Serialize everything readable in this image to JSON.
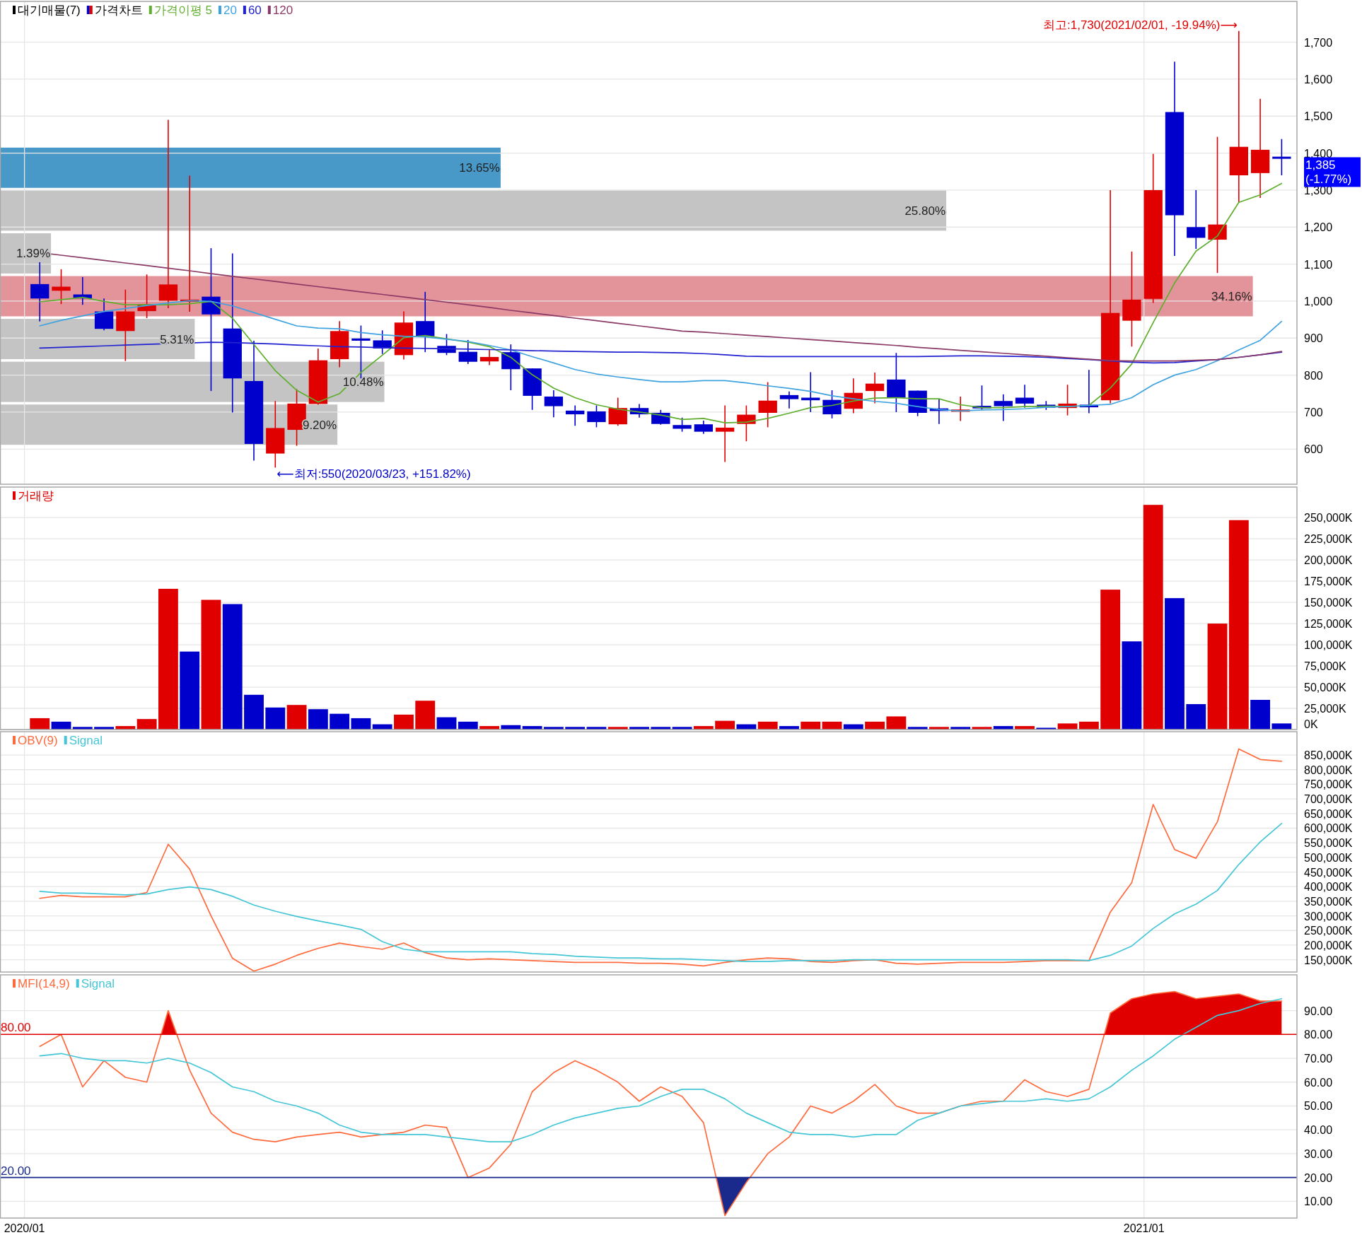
{
  "chart_data": [
    {
      "type": "bar",
      "orientation": "horizontal",
      "legend": "top left",
      "tick_labels": false,
      "categories": [
        null,
        null,
        null,
        null,
        null,
        null,
        null
      ],
      "series": [
        {
          "name": "대기매물(7)",
          "values": [
            13.65,
            25.8,
            1.39,
            34.16,
            5.31,
            10.48,
            9.2
          ],
          "colors": [
            "#4898c8",
            "#c4c4c4",
            "#c4c4c4",
            "#e3939a",
            "#c4c4c4",
            "#c4c4c4",
            "#c4c4c4"
          ],
          "value_labels": [
            "13.65%",
            "25.80%",
            "1.39%",
            "34.16%",
            "5.31%",
            "10.48%",
            "9.20%"
          ]
        }
      ]
    },
    {
      "type": "candlestick",
      "legend": "top left",
      "grid": true,
      "tick_labels": "y",
      "x": [
        "2020-01-06",
        "2020-01-13",
        "2020-01-20",
        "2020-01-27",
        "2020-02-03",
        "2020-02-10",
        "2020-02-17",
        "2020-02-24",
        "2020-03-02",
        "2020-03-09",
        "2020-03-16",
        "2020-03-23",
        "2020-03-30",
        "2020-04-06",
        "2020-04-13",
        "2020-04-20",
        "2020-04-27",
        "2020-05-04",
        "2020-05-11",
        "2020-05-18",
        "2020-05-25",
        "2020-06-01",
        "2020-06-08",
        "2020-06-15",
        "2020-06-22",
        "2020-06-29",
        "2020-07-06",
        "2020-07-13",
        "2020-07-20",
        "2020-07-27",
        "2020-08-03",
        "2020-08-10",
        "2020-08-17",
        "2020-08-24",
        "2020-08-31",
        "2020-09-07",
        "2020-09-14",
        "2020-09-21",
        "2020-09-28",
        "2020-10-05",
        "2020-10-12",
        "2020-10-19",
        "2020-10-26",
        "2020-11-02",
        "2020-11-09",
        "2020-11-16",
        "2020-11-23",
        "2020-11-30",
        "2020-12-07",
        "2020-12-14",
        "2020-12-21",
        "2020-12-28",
        "2021-01-04",
        "2021-01-11",
        "2021-01-18",
        "2021-01-25",
        "2021-02-01",
        "2021-02-08",
        "2021-02-15"
      ],
      "xlim": [
        "2019-12-24",
        "2021-02-20"
      ],
      "xticks": [
        {
          "value": "2020-01-01",
          "label": null
        },
        {
          "value": "2021-01-01",
          "label": null
        }
      ],
      "ylim": [
        505,
        1810
      ],
      "yticks": [
        600,
        700,
        800,
        900,
        {
          "value": 1000,
          "label": "1,000"
        },
        {
          "value": 1100,
          "label": "1,100"
        },
        {
          "value": 1200,
          "label": "1,200"
        },
        {
          "value": 1300,
          "label": "1,300"
        },
        {
          "value": 1400,
          "label": "1,400"
        },
        {
          "value": 1500,
          "label": "1,500"
        },
        {
          "value": 1600,
          "label": "1,600"
        },
        {
          "value": 1700,
          "label": "1,700"
        }
      ],
      "annotations": [
        {
          "text": "최고:1,730(2021/02/01, -19.94%)⟶",
          "x": "2021-02-01",
          "y": 1730
        },
        {
          "text": "⟵최저:550(2020/03/23, +151.82%)",
          "x": "2020-03-23",
          "y": 550
        },
        "1,385\n(-1.77%)"
      ],
      "series": [
        {
          "name": "가격차트",
          "ohlc": [
            [
              1046,
              1105,
              945,
              1007
            ],
            [
              1028,
              1086,
              992,
              1039
            ],
            [
              1018,
              1065,
              990,
              1007
            ],
            [
              972,
              1007,
              921,
              925
            ],
            [
              919,
              1031,
              838,
              972
            ],
            [
              973,
              1072,
              954,
              992
            ],
            [
              1001,
              1490,
              981,
              1045
            ],
            [
              998,
              1339,
              971,
              1004
            ],
            [
              1012,
              1143,
              757,
              964
            ],
            [
              926,
              1129,
              699,
              791
            ],
            [
              784,
              893,
              569,
              614
            ],
            [
              588,
              730,
              550,
              657
            ],
            [
              652,
              762,
              609,
              723
            ],
            [
              722,
              872,
              720,
              840
            ],
            [
              843,
              946,
              821,
              919
            ],
            [
              899,
              934,
              791,
              893
            ],
            [
              894,
              921,
              857,
              872
            ],
            [
              854,
              972,
              842,
              942
            ],
            [
              946,
              1025,
              862,
              905
            ],
            [
              879,
              911,
              854,
              860
            ],
            [
              863,
              895,
              830,
              836
            ],
            [
              837,
              869,
              827,
              849
            ],
            [
              862,
              883,
              759,
              816
            ],
            [
              818,
              818,
              706,
              744
            ],
            [
              742,
              759,
              686,
              716
            ],
            [
              704,
              718,
              663,
              694
            ],
            [
              702,
              718,
              659,
              673
            ],
            [
              667,
              739,
              663,
              711
            ],
            [
              711,
              722,
              685,
              694
            ],
            [
              698,
              706,
              666,
              668
            ],
            [
              665,
              685,
              647,
              655
            ],
            [
              667,
              677,
              641,
              647
            ],
            [
              647,
              718,
              565,
              658
            ],
            [
              668,
              718,
              621,
              693
            ],
            [
              698,
              781,
              659,
              731
            ],
            [
              746,
              756,
              710,
              735
            ],
            [
              739,
              808,
              700,
              732
            ],
            [
              733,
              759,
              683,
              694
            ],
            [
              709,
              791,
              697,
              752
            ],
            [
              757,
              807,
              724,
              777
            ],
            [
              788,
              860,
              700,
              739
            ],
            [
              758,
              758,
              689,
              698
            ],
            [
              710,
              736,
              668,
              703
            ],
            [
              702,
              742,
              676,
              706
            ],
            [
              717,
              772,
              706,
              710
            ],
            [
              730,
              748,
              676,
              716
            ],
            [
              739,
              774,
              712,
              723
            ],
            [
              720,
              730,
              706,
              712
            ],
            [
              711,
              774,
              691,
              723
            ],
            [
              720,
              814,
              697,
              713
            ],
            [
              732,
              1300,
              724,
              968
            ],
            [
              947,
              1134,
              877,
              1004
            ],
            [
              1006,
              1398,
              995,
              1300
            ],
            [
              1511,
              1647,
              1122,
              1232
            ],
            [
              1200,
              1300,
              1141,
              1171
            ],
            [
              1166,
              1444,
              1076,
              1207
            ],
            [
              1340,
              1730,
              1266,
              1417
            ],
            [
              1346,
              1547,
              1279,
              1409
            ],
            [
              1390,
              1438,
              1340,
              1385
            ]
          ],
          "colors": [
            "#0000cc",
            "#e00000",
            "#0000cc",
            "#0000cc",
            "#e00000",
            "#e00000",
            "#e00000",
            "#e00000",
            "#0000cc",
            "#0000cc",
            "#0000cc",
            "#e00000",
            "#e00000",
            "#e00000",
            "#e00000",
            "#0000cc",
            "#0000cc",
            "#e00000",
            "#0000cc",
            "#0000cc",
            "#0000cc",
            "#e00000",
            "#0000cc",
            "#0000cc",
            "#0000cc",
            "#0000cc",
            "#0000cc",
            "#e00000",
            "#0000cc",
            "#0000cc",
            "#0000cc",
            "#0000cc",
            "#e00000",
            "#e00000",
            "#e00000",
            "#0000cc",
            "#0000cc",
            "#0000cc",
            "#e00000",
            "#e00000",
            "#0000cc",
            "#0000cc",
            "#0000cc",
            "#e00000",
            "#0000cc",
            "#0000cc",
            "#0000cc",
            "#0000cc",
            "#e00000",
            "#0000cc",
            "#e00000",
            "#e00000",
            "#e00000",
            "#0000cc",
            "#0000cc",
            "#e00000",
            "#e00000",
            "#e00000",
            "#0000cc"
          ]
        },
        {
          "name": "가격이평 5",
          "type": "line",
          "color": "#5fae2e",
          "values": [
            998,
            1004,
            1010,
            999,
            990,
            990,
            990,
            993,
            999,
            954,
            883,
            812,
            759,
            727,
            750,
            807,
            854,
            901,
            907,
            898,
            889,
            877,
            848,
            801,
            765,
            739,
            720,
            708,
            700,
            692,
            680,
            683,
            671,
            673,
            683,
            697,
            712,
            718,
            730,
            738,
            739,
            736,
            736,
            720,
            712,
            712,
            715,
            716,
            715,
            718,
            765,
            830,
            942,
            1049,
            1135,
            1176,
            1267,
            1287,
            1318
          ]
        },
        {
          "name": "20",
          "type": "line",
          "color": "#3fa3e0",
          "values": [
            933,
            948,
            960,
            972,
            980,
            988,
            995,
            1001,
            999,
            987,
            969,
            951,
            933,
            927,
            925,
            915,
            909,
            905,
            903,
            897,
            891,
            880,
            868,
            850,
            833,
            815,
            803,
            795,
            788,
            782,
            782,
            785,
            785,
            779,
            771,
            764,
            756,
            744,
            736,
            729,
            724,
            715,
            707,
            703,
            706,
            707,
            709,
            713,
            715,
            718,
            721,
            739,
            774,
            800,
            815,
            839,
            868,
            894,
            945
          ]
        },
        {
          "name": "60",
          "type": "line",
          "color": "#2222d0",
          "values": [
            873,
            875,
            877,
            879,
            881,
            883,
            885,
            887,
            889,
            888,
            886,
            884,
            881,
            879,
            877,
            876,
            874,
            873,
            872,
            871,
            870,
            869,
            868,
            866,
            865,
            864,
            863,
            862,
            862,
            861,
            860,
            858,
            855,
            851,
            850,
            850,
            850,
            850,
            850,
            850,
            850,
            850,
            851,
            852,
            852,
            851,
            850,
            848,
            845,
            842,
            838,
            835,
            833,
            834,
            838,
            842,
            848,
            855,
            862
          ]
        },
        {
          "name": "120",
          "type": "line",
          "color": "#8b3a66",
          "values": [
            1131,
            1124,
            1117,
            1110,
            1103,
            1096,
            1089,
            1082,
            1074,
            1067,
            1060,
            1053,
            1046,
            1039,
            1032,
            1025,
            1018,
            1011,
            1004,
            997,
            990,
            983,
            975,
            968,
            961,
            954,
            947,
            940,
            933,
            926,
            919,
            916,
            912,
            908,
            904,
            900,
            896,
            892,
            888,
            884,
            880,
            875,
            871,
            867,
            863,
            859,
            855,
            851,
            847,
            843,
            839,
            838,
            838,
            838,
            840,
            842,
            848,
            855,
            864
          ]
        }
      ]
    },
    {
      "type": "bar",
      "legend": "top left",
      "grid": true,
      "tick_labels": "y",
      "x": [
        "2020-01-06",
        "2020-01-13",
        "2020-01-20",
        "2020-01-27",
        "2020-02-03",
        "2020-02-10",
        "2020-02-17",
        "2020-02-24",
        "2020-03-02",
        "2020-03-09",
        "2020-03-16",
        "2020-03-23",
        "2020-03-30",
        "2020-04-06",
        "2020-04-13",
        "2020-04-20",
        "2020-04-27",
        "2020-05-04",
        "2020-05-11",
        "2020-05-18",
        "2020-05-25",
        "2020-06-01",
        "2020-06-08",
        "2020-06-15",
        "2020-06-22",
        "2020-06-29",
        "2020-07-06",
        "2020-07-13",
        "2020-07-20",
        "2020-07-27",
        "2020-08-03",
        "2020-08-10",
        "2020-08-17",
        "2020-08-24",
        "2020-08-31",
        "2020-09-07",
        "2020-09-14",
        "2020-09-21",
        "2020-09-28",
        "2020-10-05",
        "2020-10-12",
        "2020-10-19",
        "2020-10-26",
        "2020-11-02",
        "2020-11-09",
        "2020-11-16",
        "2020-11-23",
        "2020-11-30",
        "2020-12-07",
        "2020-12-14",
        "2020-12-21",
        "2020-12-28",
        "2021-01-04",
        "2021-01-11",
        "2021-01-18",
        "2021-01-25",
        "2021-02-01",
        "2021-02-08",
        "2021-02-15"
      ],
      "xlim": [
        "2019-12-24",
        "2021-02-20"
      ],
      "xticks": [
        {
          "value": "2020-01-01",
          "label": null
        },
        {
          "value": "2021-01-01",
          "label": null
        }
      ],
      "ylim": [
        0,
        286000
      ],
      "yticks": [
        {
          "value": 0,
          "label": "0K"
        },
        {
          "value": 25000,
          "label": "25,000K"
        },
        {
          "value": 50000,
          "label": "50,000K"
        },
        {
          "value": 75000,
          "label": "75,000K"
        },
        {
          "value": 100000,
          "label": "100,000K"
        },
        {
          "value": 125000,
          "label": "125,000K"
        },
        {
          "value": 150000,
          "label": "150,000K"
        },
        {
          "value": 175000,
          "label": "175,000K"
        },
        {
          "value": 200000,
          "label": "200,000K"
        },
        {
          "value": 225000,
          "label": "225,000K"
        },
        {
          "value": 250000,
          "label": "250,000K"
        }
      ],
      "series": [
        {
          "name": "거래량",
          "color": "#e00000",
          "values": [
            13400,
            9300,
            3100,
            3100,
            4100,
            12400,
            166000,
            92000,
            153000,
            148000,
            41000,
            26000,
            29000,
            24000,
            18600,
            13400,
            6200,
            17600,
            34000,
            14500,
            9300,
            4100,
            5200,
            4100,
            3100,
            3100,
            3100,
            3100,
            3100,
            3100,
            3100,
            4100,
            10300,
            6200,
            9300,
            4100,
            9300,
            9300,
            6200,
            9300,
            15500,
            3100,
            3100,
            3100,
            3100,
            4100,
            4100,
            2100,
            7200,
            9300,
            165000,
            104000,
            265000,
            155000,
            30000,
            125000,
            247000,
            35000,
            7200
          ],
          "colors": [
            "#e00000",
            "#0000cc",
            "#0000cc",
            "#0000cc",
            "#e00000",
            "#e00000",
            "#e00000",
            "#0000cc",
            "#e00000",
            "#0000cc",
            "#0000cc",
            "#0000cc",
            "#e00000",
            "#0000cc",
            "#0000cc",
            "#0000cc",
            "#0000cc",
            "#e00000",
            "#e00000",
            "#0000cc",
            "#0000cc",
            "#e00000",
            "#0000cc",
            "#0000cc",
            "#0000cc",
            "#0000cc",
            "#0000cc",
            "#e00000",
            "#0000cc",
            "#0000cc",
            "#0000cc",
            "#e00000",
            "#e00000",
            "#0000cc",
            "#e00000",
            "#0000cc",
            "#e00000",
            "#e00000",
            "#0000cc",
            "#e00000",
            "#e00000",
            "#0000cc",
            "#e00000",
            "#0000cc",
            "#e00000",
            "#0000cc",
            "#e00000",
            "#0000cc",
            "#e00000",
            "#e00000",
            "#e00000",
            "#0000cc",
            "#e00000",
            "#0000cc",
            "#0000cc",
            "#e00000",
            "#e00000",
            "#0000cc",
            "#0000cc"
          ]
        }
      ]
    },
    {
      "type": "line",
      "legend": "top left",
      "grid": true,
      "tick_labels": "y",
      "x": [
        "2020-01-06",
        "2020-01-13",
        "2020-01-20",
        "2020-01-27",
        "2020-02-03",
        "2020-02-10",
        "2020-02-17",
        "2020-02-24",
        "2020-03-02",
        "2020-03-09",
        "2020-03-16",
        "2020-03-23",
        "2020-03-30",
        "2020-04-06",
        "2020-04-13",
        "2020-04-20",
        "2020-04-27",
        "2020-05-04",
        "2020-05-11",
        "2020-05-18",
        "2020-05-25",
        "2020-06-01",
        "2020-06-08",
        "2020-06-15",
        "2020-06-22",
        "2020-06-29",
        "2020-07-06",
        "2020-07-13",
        "2020-07-20",
        "2020-07-27",
        "2020-08-03",
        "2020-08-10",
        "2020-08-17",
        "2020-08-24",
        "2020-08-31",
        "2020-09-07",
        "2020-09-14",
        "2020-09-21",
        "2020-09-28",
        "2020-10-05",
        "2020-10-12",
        "2020-10-19",
        "2020-10-26",
        "2020-11-02",
        "2020-11-09",
        "2020-11-16",
        "2020-11-23",
        "2020-11-30",
        "2020-12-07",
        "2020-12-14",
        "2020-12-21",
        "2020-12-28",
        "2021-01-04",
        "2021-01-11",
        "2021-01-18",
        "2021-01-25",
        "2021-02-01",
        "2021-02-08",
        "2021-02-15"
      ],
      "xlim": [
        "2019-12-24",
        "2021-02-20"
      ],
      "xticks": [
        {
          "value": "2020-01-01",
          "label": null
        },
        {
          "value": "2021-01-01",
          "label": null
        }
      ],
      "ylim": [
        108000,
        930000
      ],
      "yticks": [
        {
          "value": 150000,
          "label": "150,000K"
        },
        {
          "value": 200000,
          "label": "200,000K"
        },
        {
          "value": 250000,
          "label": "250,000K"
        },
        {
          "value": 300000,
          "label": "300,000K"
        },
        {
          "value": 350000,
          "label": "350,000K"
        },
        {
          "value": 400000,
          "label": "400,000K"
        },
        {
          "value": 450000,
          "label": "450,000K"
        },
        {
          "value": 500000,
          "label": "500,000K"
        },
        {
          "value": 550000,
          "label": "550,000K"
        },
        {
          "value": 600000,
          "label": "600,000K"
        },
        {
          "value": 650000,
          "label": "650,000K"
        },
        {
          "value": 700000,
          "label": "700,000K"
        },
        {
          "value": 750000,
          "label": "750,000K"
        },
        {
          "value": 800000,
          "label": "800,000K"
        },
        {
          "value": 850000,
          "label": "850,000K"
        }
      ],
      "series": [
        {
          "name": "OBV(9)",
          "color": "#ff6a3d",
          "values": [
            360000,
            370000,
            365000,
            365000,
            365000,
            380000,
            545000,
            460000,
            300000,
            155000,
            111000,
            135000,
            165000,
            189000,
            207000,
            195000,
            186000,
            207000,
            174000,
            156000,
            150000,
            153000,
            150000,
            147000,
            144000,
            141000,
            141000,
            141000,
            138000,
            138000,
            135000,
            129000,
            141000,
            150000,
            156000,
            153000,
            144000,
            141000,
            147000,
            150000,
            138000,
            135000,
            138000,
            141000,
            141000,
            141000,
            144000,
            147000,
            147000,
            147000,
            313000,
            414000,
            681000,
            527000,
            497000,
            622000,
            871000,
            835000,
            829000
          ]
        },
        {
          "name": "Signal",
          "color": "#45c6d6",
          "values": [
            384000,
            378000,
            378000,
            375000,
            372000,
            375000,
            390000,
            399000,
            390000,
            367000,
            337000,
            316000,
            298000,
            283000,
            269000,
            254000,
            212000,
            186000,
            177000,
            177000,
            177000,
            177000,
            177000,
            171000,
            168000,
            162000,
            159000,
            156000,
            156000,
            153000,
            153000,
            150000,
            147000,
            144000,
            144000,
            147000,
            147000,
            147000,
            150000,
            150000,
            150000,
            150000,
            150000,
            150000,
            150000,
            150000,
            150000,
            150000,
            150000,
            147000,
            165000,
            197000,
            257000,
            307000,
            340000,
            387000,
            476000,
            553000,
            616000
          ]
        }
      ]
    },
    {
      "type": "line",
      "legend": "top left",
      "grid": true,
      "x": [
        "2020-01-06",
        "2020-01-13",
        "2020-01-20",
        "2020-01-27",
        "2020-02-03",
        "2020-02-10",
        "2020-02-17",
        "2020-02-24",
        "2020-03-02",
        "2020-03-09",
        "2020-03-16",
        "2020-03-23",
        "2020-03-30",
        "2020-04-06",
        "2020-04-13",
        "2020-04-20",
        "2020-04-27",
        "2020-05-04",
        "2020-05-11",
        "2020-05-18",
        "2020-05-25",
        "2020-06-01",
        "2020-06-08",
        "2020-06-15",
        "2020-06-22",
        "2020-06-29",
        "2020-07-06",
        "2020-07-13",
        "2020-07-20",
        "2020-07-27",
        "2020-08-03",
        "2020-08-10",
        "2020-08-17",
        "2020-08-24",
        "2020-08-31",
        "2020-09-07",
        "2020-09-14",
        "2020-09-21",
        "2020-09-28",
        "2020-10-05",
        "2020-10-12",
        "2020-10-19",
        "2020-10-26",
        "2020-11-02",
        "2020-11-09",
        "2020-11-16",
        "2020-11-23",
        "2020-11-30",
        "2020-12-07",
        "2020-12-14",
        "2020-12-21",
        "2020-12-28",
        "2021-01-04",
        "2021-01-11",
        "2021-01-18",
        "2021-01-25",
        "2021-02-01",
        "2021-02-08",
        "2021-02-15"
      ],
      "xlim": [
        "2019-12-24",
        "2021-02-20"
      ],
      "xticks": [
        {
          "value": "2020-01-01",
          "label": "2020/01"
        },
        {
          "value": "2021-01-01",
          "label": "2021/01"
        }
      ],
      "ylim": [
        3,
        105
      ],
      "yticks": [
        {
          "value": 10,
          "label": "10.00"
        },
        {
          "value": 20,
          "label": "20.00"
        },
        {
          "value": 30,
          "label": "30.00"
        },
        {
          "value": 40,
          "label": "40.00"
        },
        {
          "value": 50,
          "label": "50.00"
        },
        {
          "value": 60,
          "label": "60.00"
        },
        {
          "value": 70,
          "label": "70.00"
        },
        {
          "value": 80,
          "label": "80.00"
        },
        {
          "value": 90,
          "label": "90.00"
        }
      ],
      "ref_lines": [
        {
          "axis": "y",
          "value": 80,
          "label": "80.00",
          "color": "#e00000"
        },
        {
          "axis": "y",
          "value": 20,
          "label": "20.00",
          "color": "#1a2a8c"
        }
      ],
      "series": [
        {
          "name": "MFI(14,9)",
          "color": "#ff6a3d",
          "values": [
            75,
            80,
            58,
            69,
            62,
            60,
            90,
            65,
            47,
            39,
            36,
            35,
            37,
            38,
            39,
            37,
            38,
            39,
            42,
            41,
            20,
            24,
            34,
            56,
            64,
            69,
            65,
            60,
            52,
            58,
            54,
            43,
            4,
            18,
            30,
            37,
            50,
            47,
            52,
            59,
            50,
            47,
            47,
            50,
            52,
            52,
            61,
            56,
            54,
            57,
            89,
            95,
            97,
            98,
            95,
            96,
            97,
            94,
            94
          ]
        },
        {
          "name": "Signal",
          "color": "#45c6d6",
          "values": [
            71,
            72,
            70,
            69,
            69,
            68,
            70,
            68,
            64,
            58,
            56,
            52,
            50,
            47,
            42,
            39,
            38,
            38,
            38,
            37,
            36,
            35,
            35,
            38,
            42,
            45,
            47,
            49,
            50,
            54,
            57,
            57,
            53,
            47,
            43,
            39,
            38,
            38,
            37,
            38,
            38,
            44,
            47,
            50,
            51,
            52,
            52,
            53,
            52,
            53,
            58,
            65,
            71,
            78,
            83,
            88,
            90,
            93,
            95
          ]
        }
      ]
    }
  ]
}
